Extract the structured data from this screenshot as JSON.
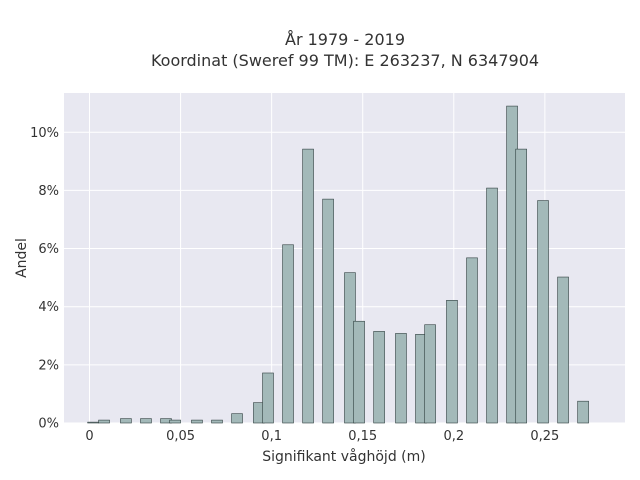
{
  "chart_data": {
    "type": "bar",
    "title": [
      "År 1979 - 2019",
      "Koordinat (Sweref 99 TM): E 263237, N 6347904"
    ],
    "xlabel": "Signifikant våghöjd (m)",
    "ylabel": "Andel",
    "x_ticks": [
      {
        "value": 0,
        "label": "0"
      },
      {
        "value": 0.05,
        "label": "0,05"
      },
      {
        "value": 0.1,
        "label": "0,1"
      },
      {
        "value": 0.15,
        "label": "0,15"
      },
      {
        "value": 0.2,
        "label": "0,2"
      },
      {
        "value": 0.25,
        "label": "0,25"
      }
    ],
    "y_ticks": [
      {
        "value": 0,
        "label": "0%"
      },
      {
        "value": 2,
        "label": "2%"
      },
      {
        "value": 4,
        "label": "4%"
      },
      {
        "value": 6,
        "label": "6%"
      },
      {
        "value": 8,
        "label": "8%"
      },
      {
        "value": 10,
        "label": "10%"
      }
    ],
    "xlim": [
      -0.014,
      0.294
    ],
    "ylim": [
      0,
      11.35
    ],
    "bar_width": 0.006,
    "grid": true,
    "colors": {
      "bar_fill": "#a3b9b9",
      "bar_stroke": "#2f3f3f",
      "plot_bg": "#e8e8f1",
      "grid": "#ffffff"
    },
    "bars": [
      {
        "x": 0.002,
        "y": 0.03
      },
      {
        "x": 0.008,
        "y": 0.1
      },
      {
        "x": 0.02,
        "y": 0.15
      },
      {
        "x": 0.031,
        "y": 0.15
      },
      {
        "x": 0.042,
        "y": 0.15
      },
      {
        "x": 0.047,
        "y": 0.1
      },
      {
        "x": 0.059,
        "y": 0.1
      },
      {
        "x": 0.07,
        "y": 0.1
      },
      {
        "x": 0.081,
        "y": 0.32
      },
      {
        "x": 0.093,
        "y": 0.7
      },
      {
        "x": 0.098,
        "y": 1.72
      },
      {
        "x": 0.109,
        "y": 6.13
      },
      {
        "x": 0.12,
        "y": 9.42
      },
      {
        "x": 0.131,
        "y": 7.7
      },
      {
        "x": 0.143,
        "y": 5.17
      },
      {
        "x": 0.148,
        "y": 3.5
      },
      {
        "x": 0.159,
        "y": 3.15
      },
      {
        "x": 0.171,
        "y": 3.08
      },
      {
        "x": 0.182,
        "y": 3.05
      },
      {
        "x": 0.187,
        "y": 3.38
      },
      {
        "x": 0.199,
        "y": 4.22
      },
      {
        "x": 0.21,
        "y": 5.68
      },
      {
        "x": 0.221,
        "y": 8.08
      },
      {
        "x": 0.232,
        "y": 10.9
      },
      {
        "x": 0.237,
        "y": 9.42
      },
      {
        "x": 0.249,
        "y": 7.65
      },
      {
        "x": 0.26,
        "y": 5.02
      },
      {
        "x": 0.271,
        "y": 0.75
      }
    ]
  }
}
